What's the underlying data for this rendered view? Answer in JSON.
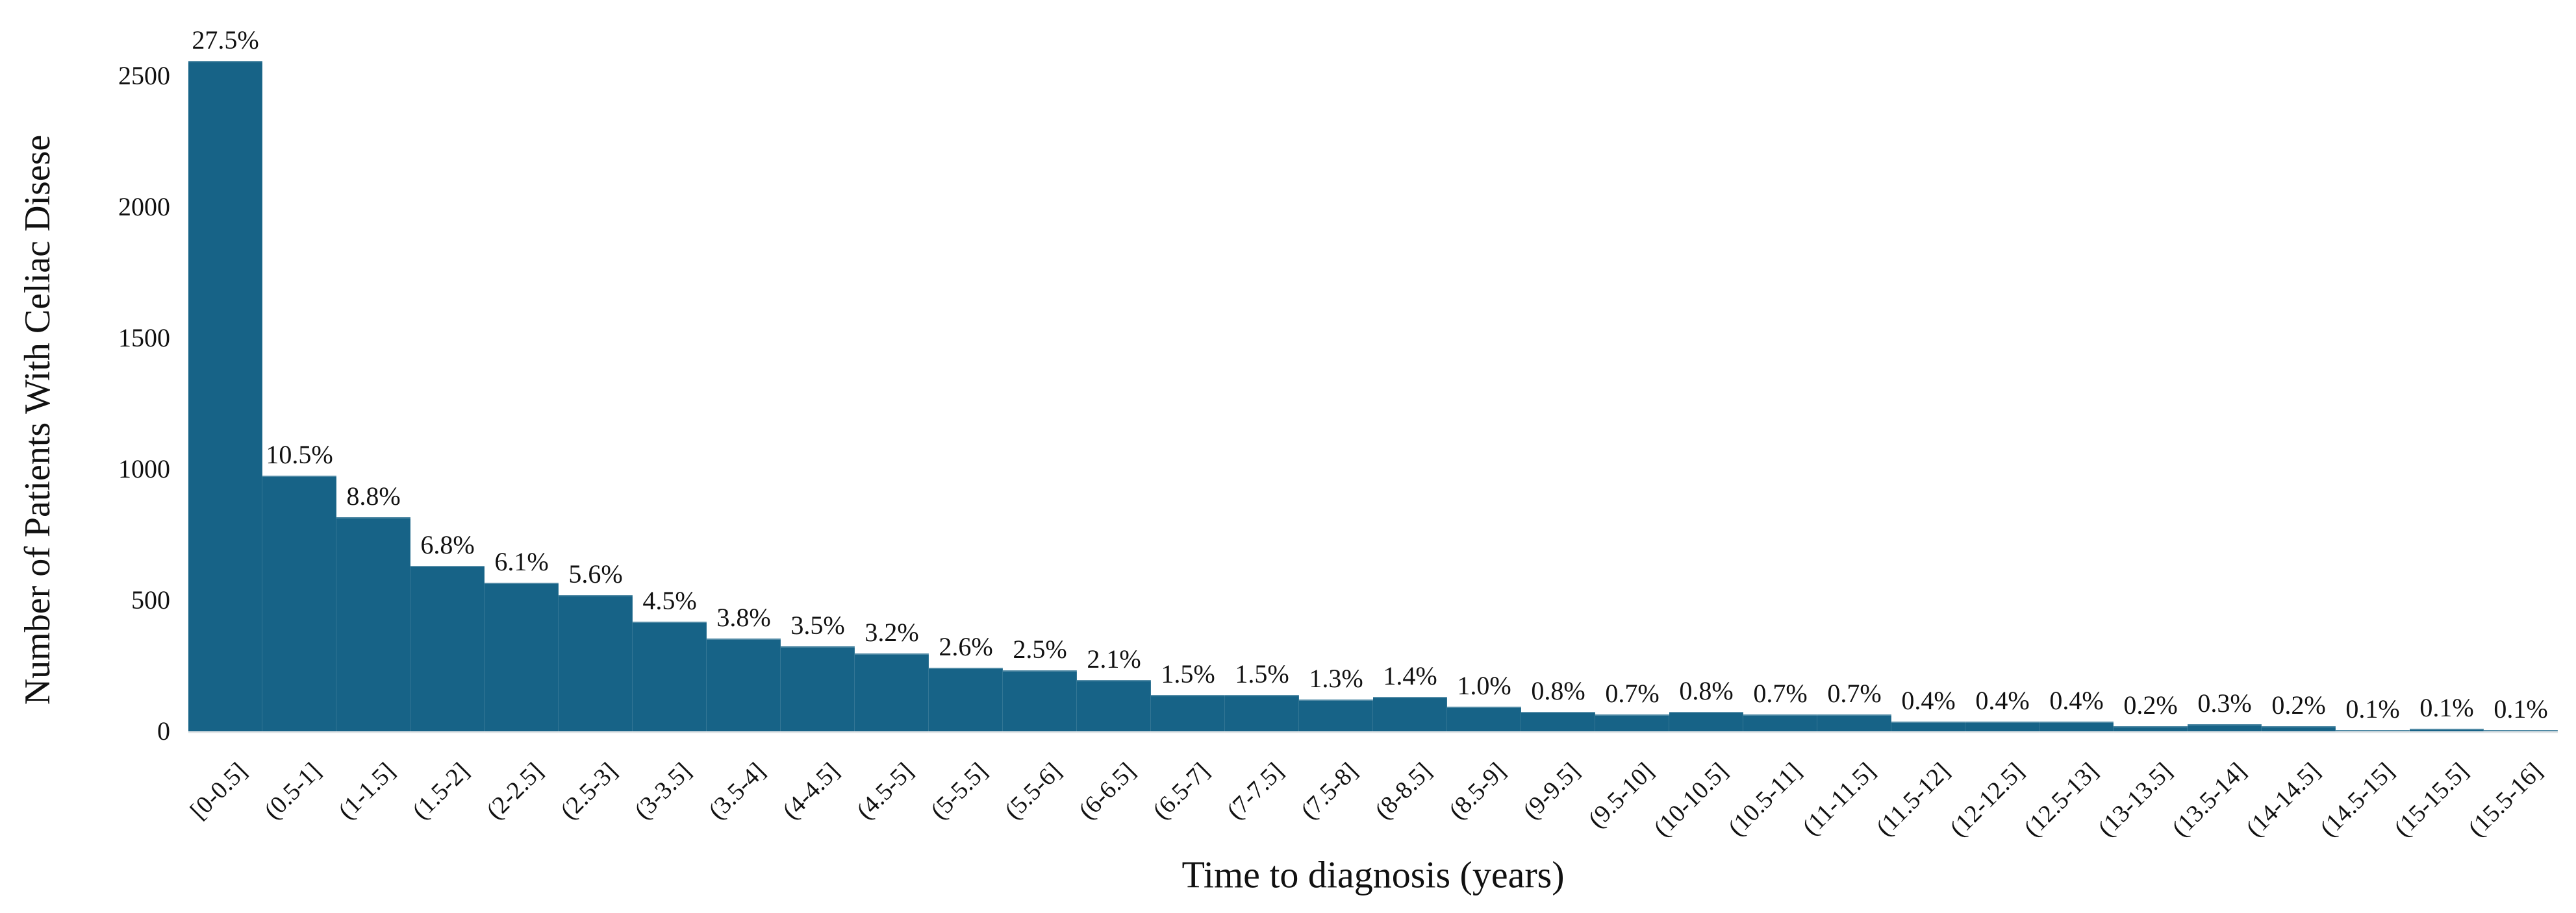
{
  "chart_data": {
    "type": "bar",
    "title": "",
    "xlabel": "Time to diagnosis (years)",
    "ylabel": "Number of Patients With Celiac Disese",
    "categories": [
      "[0-0.5]",
      "(0.5-1]",
      "(1-1.5]",
      "(1.5-2]",
      "(2-2.5]",
      "(2.5-3]",
      "(3-3.5]",
      "(3.5-4]",
      "(4-4.5]",
      "(4.5-5]",
      "(5-5.5]",
      "(5.5-6]",
      "(6-6.5]",
      "(6.5-7]",
      "(7-7.5]",
      "(7.5-8]",
      "(8-8.5]",
      "(8.5-9]",
      "(9-9.5]",
      "(9.5-10]",
      "(10-10.5]",
      "(10.5-11]",
      "(11-11.5]",
      "(11.5-12]",
      "(12-12.5]",
      "(12.5-13]",
      "(13-13.5]",
      "(13.5-14]",
      "(14-14.5]",
      "(14.5-15]",
      "(15-15.5]",
      "(15.5-16]"
    ],
    "percent_labels": [
      "27.5%",
      "10.5%",
      "8.8%",
      "6.8%",
      "6.1%",
      "5.6%",
      "4.5%",
      "3.8%",
      "3.5%",
      "3.2%",
      "2.6%",
      "2.5%",
      "2.1%",
      "1.5%",
      "1.5%",
      "1.3%",
      "1.4%",
      "1.0%",
      "0.8%",
      "0.7%",
      "0.8%",
      "0.7%",
      "0.7%",
      "0.4%",
      "0.4%",
      "0.4%",
      "0.2%",
      "0.3%",
      "0.2%",
      "0.1%",
      "0.1%",
      "0.1%"
    ],
    "values_estimated_patients": [
      2557,
      976,
      818,
      632,
      567,
      521,
      418,
      353,
      325,
      298,
      242,
      232,
      195,
      139,
      139,
      121,
      130,
      93,
      74,
      65,
      74,
      65,
      65,
      37,
      37,
      37,
      19,
      28,
      19,
      5,
      11,
      4
    ],
    "y_ticks": [
      0,
      500,
      1000,
      1500,
      2000,
      2500
    ],
    "ylim": [
      0,
      2600
    ],
    "bar_color": "#176387",
    "baseline_color": "#e2e5e7",
    "grid": false,
    "legend": "none"
  }
}
